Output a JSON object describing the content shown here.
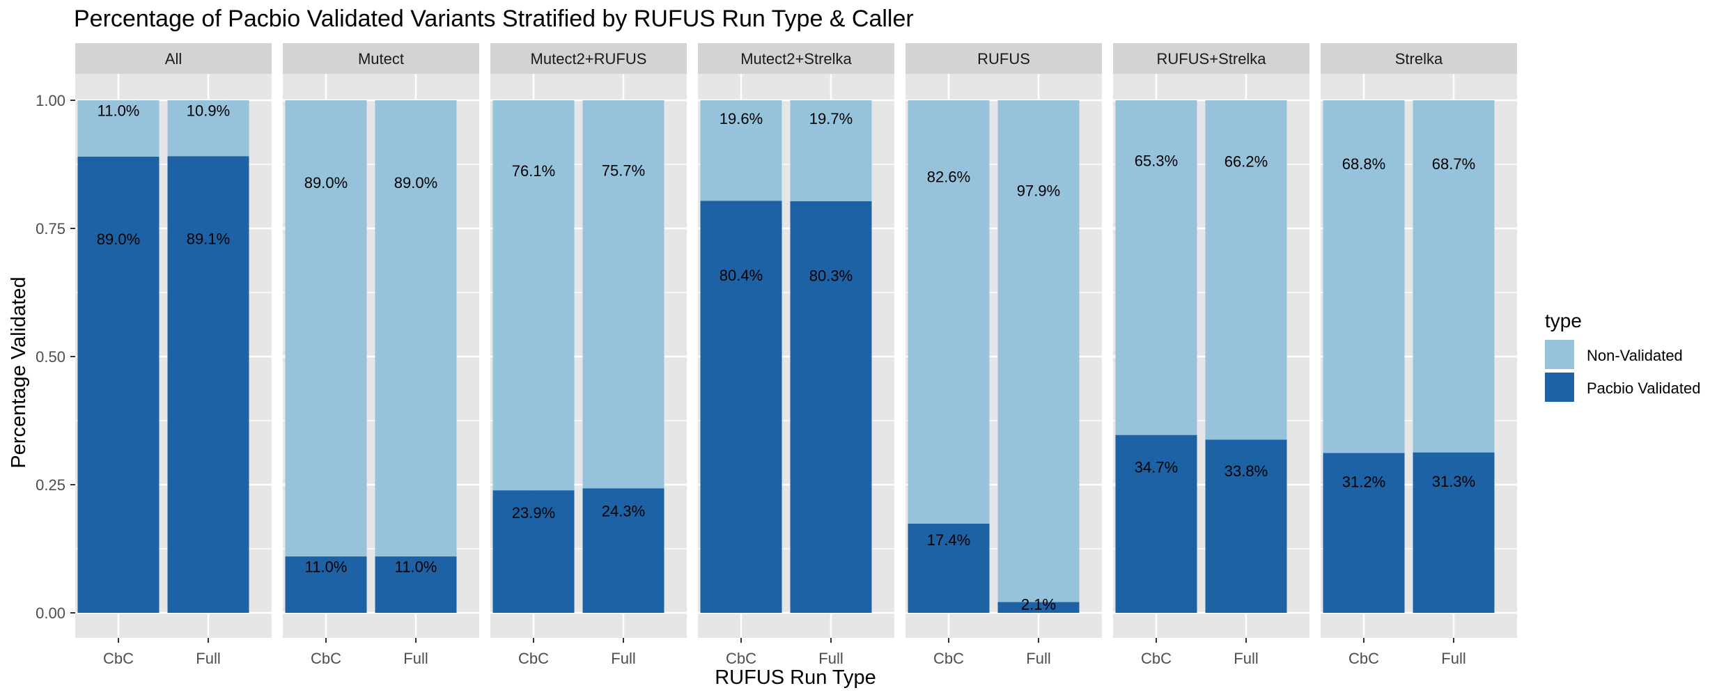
{
  "chart_data": {
    "type": "bar",
    "stacked": true,
    "title": "Percentage of Pacbio Validated Variants Stratified by RUFUS Run Type & Caller",
    "xlabel": "RUFUS Run Type",
    "ylabel": "Percentage Validated",
    "ylim": [
      0,
      1
    ],
    "yticks": [
      "0.00",
      "0.25",
      "0.50",
      "0.75",
      "1.00"
    ],
    "ytick_values": [
      0,
      0.25,
      0.5,
      0.75,
      1.0
    ],
    "categories": [
      "CbC",
      "Full"
    ],
    "grid": true,
    "legend": {
      "title": "type",
      "placement": "right",
      "entries": [
        "Non-Validated",
        "Pacbio Validated"
      ]
    },
    "colors": {
      "Non-Validated": "#96C2DB",
      "Pacbio Validated": "#1D62A5",
      "panel_background": "#E6E6E6",
      "strip_background": "#D3D3D3",
      "gridline": "#FFFFFF"
    },
    "facets": [
      {
        "name": "All",
        "series": [
          {
            "name": "Pacbio Validated",
            "values": [
              0.89,
              0.891
            ],
            "labels": [
              "89.0%",
              "89.1%"
            ]
          },
          {
            "name": "Non-Validated",
            "values": [
              0.11,
              0.109
            ],
            "labels": [
              "11.0%",
              "10.9%"
            ]
          }
        ]
      },
      {
        "name": "Mutect",
        "series": [
          {
            "name": "Pacbio Validated",
            "values": [
              0.11,
              0.11
            ],
            "labels": [
              "11.0%",
              "11.0%"
            ]
          },
          {
            "name": "Non-Validated",
            "values": [
              0.89,
              0.89
            ],
            "labels": [
              "89.0%",
              "89.0%"
            ]
          }
        ]
      },
      {
        "name": "Mutect2+RUFUS",
        "series": [
          {
            "name": "Pacbio Validated",
            "values": [
              0.239,
              0.243
            ],
            "labels": [
              "23.9%",
              "24.3%"
            ]
          },
          {
            "name": "Non-Validated",
            "values": [
              0.761,
              0.757
            ],
            "labels": [
              "76.1%",
              "75.7%"
            ]
          }
        ]
      },
      {
        "name": "Mutect2+Strelka",
        "series": [
          {
            "name": "Pacbio Validated",
            "values": [
              0.804,
              0.803
            ],
            "labels": [
              "80.4%",
              "80.3%"
            ]
          },
          {
            "name": "Non-Validated",
            "values": [
              0.196,
              0.197
            ],
            "labels": [
              "19.6%",
              "19.7%"
            ]
          }
        ]
      },
      {
        "name": "RUFUS",
        "series": [
          {
            "name": "Pacbio Validated",
            "values": [
              0.174,
              0.021
            ],
            "labels": [
              "17.4%",
              "2.1%"
            ]
          },
          {
            "name": "Non-Validated",
            "values": [
              0.826,
              0.979
            ],
            "labels": [
              "82.6%",
              "97.9%"
            ]
          }
        ]
      },
      {
        "name": "RUFUS+Strelka",
        "series": [
          {
            "name": "Pacbio Validated",
            "values": [
              0.347,
              0.338
            ],
            "labels": [
              "34.7%",
              "33.8%"
            ]
          },
          {
            "name": "Non-Validated",
            "values": [
              0.653,
              0.662
            ],
            "labels": [
              "65.3%",
              "66.2%"
            ]
          }
        ]
      },
      {
        "name": "Strelka",
        "series": [
          {
            "name": "Pacbio Validated",
            "values": [
              0.312,
              0.313
            ],
            "labels": [
              "31.2%",
              "31.3%"
            ]
          },
          {
            "name": "Non-Validated",
            "values": [
              0.688,
              0.687
            ],
            "labels": [
              "68.8%",
              "68.7%"
            ]
          }
        ]
      }
    ]
  }
}
